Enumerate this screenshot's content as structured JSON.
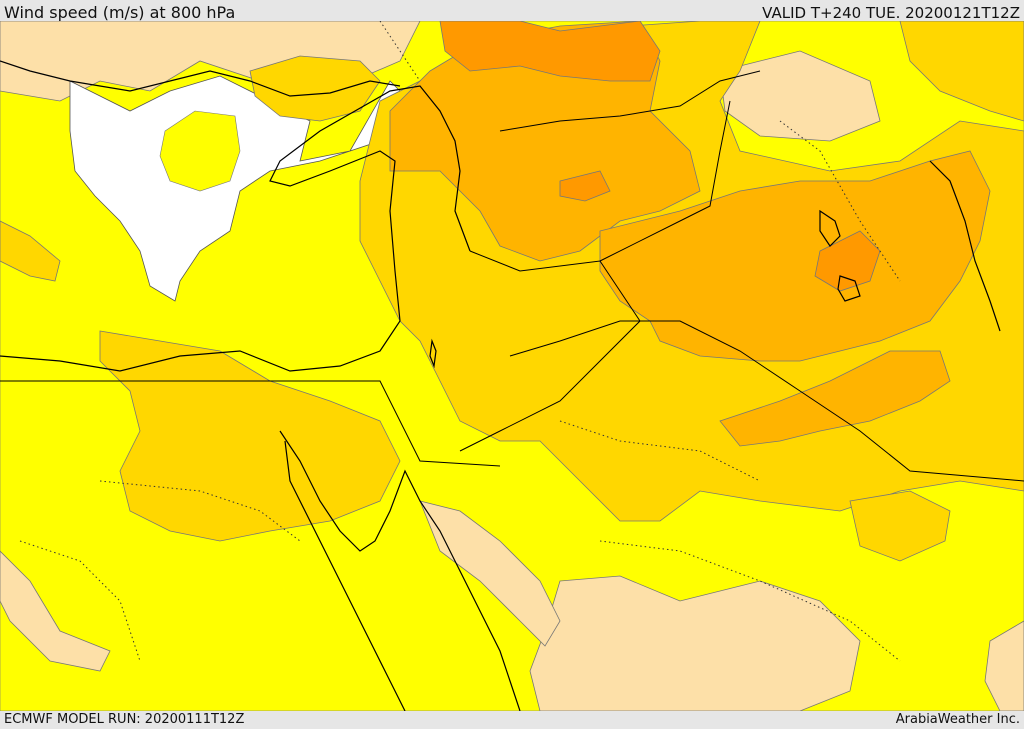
{
  "header": {
    "title": "Wind speed (m/s) at 800 hPa",
    "valid": "VALID T+240 TUE. 20200121T12Z"
  },
  "footer": {
    "model_run": "ECMWF MODEL RUN: 20200111T12Z",
    "credit": "ArabiaWeather Inc."
  },
  "colors": {
    "calm": "#ffffff",
    "low": "#fde0a8",
    "moderate": "#ffff00",
    "strong": "#ffd700",
    "stronger": "#ffb400",
    "strongest": "#ff9900"
  }
}
